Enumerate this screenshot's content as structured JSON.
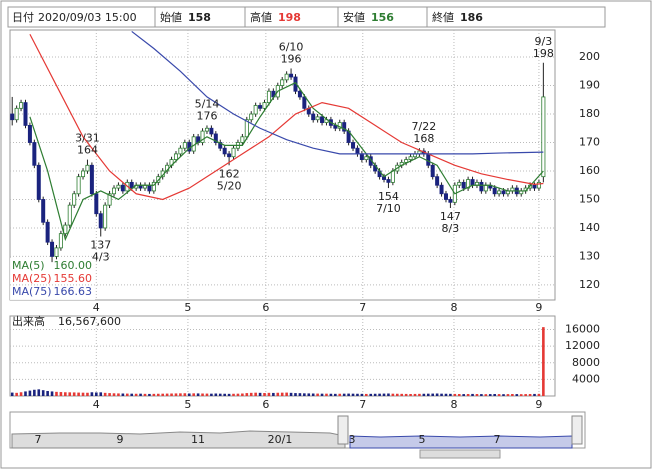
{
  "header": {
    "date_label": "日付",
    "date": "2020/09/03 15:00",
    "open_label": "始値",
    "open": 158,
    "high_label": "高値",
    "high": 198,
    "low_label": "安値",
    "low": 156,
    "close_label": "終値",
    "close": 186
  },
  "chart_data": {
    "type": "candlestick",
    "candles": [
      [
        180,
        186,
        176,
        178
      ],
      [
        178,
        183,
        177,
        182
      ],
      [
        182,
        185,
        181,
        184
      ],
      [
        184,
        185,
        175,
        176
      ],
      [
        176,
        177,
        169,
        170
      ],
      [
        170,
        171,
        161,
        162
      ],
      [
        162,
        163,
        149,
        150
      ],
      [
        150,
        151,
        141,
        142
      ],
      [
        142,
        143,
        134,
        135
      ],
      [
        135,
        136,
        128,
        130
      ],
      [
        130,
        134,
        129,
        133
      ],
      [
        133,
        139,
        132,
        138
      ],
      [
        138,
        142,
        137,
        141
      ],
      [
        141,
        149,
        140,
        148
      ],
      [
        148,
        153,
        147,
        152
      ],
      [
        152,
        159,
        151,
        158
      ],
      [
        158,
        161,
        157,
        160
      ],
      [
        160,
        164,
        159,
        162
      ],
      [
        162,
        163,
        151,
        152
      ],
      [
        152,
        153,
        144,
        145
      ],
      [
        145,
        146,
        137,
        140
      ],
      [
        140,
        149,
        139,
        148
      ],
      [
        148,
        153,
        147,
        152
      ],
      [
        152,
        155,
        151,
        154
      ],
      [
        154,
        156,
        153,
        155
      ],
      [
        155,
        156,
        152,
        153
      ],
      [
        153,
        157,
        152,
        156
      ],
      [
        156,
        157,
        153,
        154
      ],
      [
        154,
        156,
        153,
        155
      ],
      [
        155,
        156,
        153,
        154
      ],
      [
        154,
        156,
        153,
        155
      ],
      [
        155,
        156,
        152,
        153
      ],
      [
        153,
        157,
        152,
        156
      ],
      [
        156,
        159,
        155,
        158
      ],
      [
        158,
        161,
        157,
        160
      ],
      [
        160,
        163,
        159,
        162
      ],
      [
        162,
        165,
        161,
        164
      ],
      [
        164,
        167,
        163,
        166
      ],
      [
        166,
        169,
        165,
        168
      ],
      [
        168,
        171,
        167,
        170
      ],
      [
        170,
        171,
        166,
        167
      ],
      [
        167,
        173,
        166,
        172
      ],
      [
        172,
        173,
        169,
        170
      ],
      [
        170,
        175,
        169,
        174
      ],
      [
        174,
        176,
        173,
        175
      ],
      [
        175,
        176,
        172,
        173
      ],
      [
        173,
        174,
        169,
        170
      ],
      [
        170,
        171,
        167,
        168
      ],
      [
        168,
        169,
        165,
        166
      ],
      [
        166,
        167,
        162,
        165
      ],
      [
        165,
        169,
        164,
        168
      ],
      [
        168,
        171,
        167,
        170
      ],
      [
        170,
        173,
        169,
        172
      ],
      [
        172,
        179,
        171,
        178
      ],
      [
        178,
        181,
        177,
        180
      ],
      [
        180,
        184,
        179,
        183
      ],
      [
        183,
        184,
        181,
        182
      ],
      [
        182,
        185,
        181,
        184
      ],
      [
        184,
        189,
        183,
        188
      ],
      [
        188,
        189,
        185,
        186
      ],
      [
        186,
        191,
        185,
        190
      ],
      [
        190,
        193,
        189,
        192
      ],
      [
        192,
        195,
        191,
        194
      ],
      [
        194,
        196,
        192,
        193
      ],
      [
        193,
        194,
        187,
        188
      ],
      [
        188,
        189,
        185,
        186
      ],
      [
        186,
        187,
        181,
        182
      ],
      [
        182,
        183,
        179,
        180
      ],
      [
        180,
        181,
        177,
        178
      ],
      [
        178,
        180,
        177,
        179
      ],
      [
        179,
        180,
        176,
        177
      ],
      [
        177,
        179,
        176,
        178
      ],
      [
        178,
        179,
        175,
        176
      ],
      [
        176,
        177,
        174,
        175
      ],
      [
        175,
        178,
        174,
        177
      ],
      [
        177,
        178,
        173,
        174
      ],
      [
        174,
        175,
        169,
        170
      ],
      [
        170,
        171,
        167,
        168
      ],
      [
        168,
        169,
        165,
        166
      ],
      [
        166,
        167,
        163,
        164
      ],
      [
        164,
        166,
        163,
        165
      ],
      [
        165,
        166,
        161,
        162
      ],
      [
        162,
        163,
        159,
        160
      ],
      [
        160,
        161,
        157,
        158
      ],
      [
        158,
        159,
        156,
        157
      ],
      [
        157,
        158,
        154,
        156
      ],
      [
        156,
        161,
        155,
        160
      ],
      [
        160,
        163,
        159,
        162
      ],
      [
        162,
        164,
        161,
        163
      ],
      [
        163,
        165,
        162,
        164
      ],
      [
        164,
        166,
        163,
        165
      ],
      [
        165,
        167,
        164,
        166
      ],
      [
        166,
        168,
        165,
        167
      ],
      [
        167,
        168,
        165,
        166
      ],
      [
        166,
        167,
        161,
        162
      ],
      [
        162,
        163,
        157,
        158
      ],
      [
        158,
        159,
        154,
        155
      ],
      [
        155,
        156,
        151,
        152
      ],
      [
        152,
        153,
        149,
        150
      ],
      [
        150,
        151,
        147,
        149
      ],
      [
        149,
        156,
        148,
        155
      ],
      [
        155,
        157,
        154,
        156
      ],
      [
        156,
        157,
        153,
        154
      ],
      [
        154,
        158,
        153,
        157
      ],
      [
        157,
        158,
        154,
        155
      ],
      [
        155,
        157,
        154,
        156
      ],
      [
        156,
        157,
        152,
        153
      ],
      [
        153,
        156,
        152,
        155
      ],
      [
        155,
        156,
        153,
        154
      ],
      [
        154,
        155,
        151,
        152
      ],
      [
        152,
        154,
        151,
        153
      ],
      [
        153,
        154,
        151,
        152
      ],
      [
        152,
        154,
        151,
        153
      ],
      [
        153,
        155,
        152,
        154
      ],
      [
        154,
        155,
        151,
        152
      ],
      [
        152,
        154,
        151,
        153
      ],
      [
        153,
        155,
        152,
        154
      ],
      [
        154,
        156,
        153,
        155
      ],
      [
        155,
        156,
        153,
        154
      ],
      [
        154,
        157,
        153,
        156
      ],
      [
        158,
        198,
        156,
        186
      ]
    ],
    "xlim": [
      -0.5,
      121.5
    ],
    "xticks": [
      {
        "value": 19,
        "label": "4"
      },
      {
        "value": 39.7,
        "label": "5"
      },
      {
        "value": 57.3,
        "label": "6"
      },
      {
        "value": 79.2,
        "label": "7"
      },
      {
        "value": 99.8,
        "label": "8"
      },
      {
        "value": 119,
        "label": "9"
      }
    ],
    "ylim": [
      114.7,
      209.5
    ],
    "yticks": [
      120,
      130,
      140,
      150,
      160,
      170,
      180,
      190,
      200
    ],
    "grid": true,
    "up_color": "#ffffff",
    "down_color": "#1a237e",
    "series": [
      {
        "name": "MA(5)",
        "color": "#2e7d32",
        "legend_value": {
          "value": 160,
          "label": "160.00"
        },
        "x": [
          4,
          8,
          12,
          16,
          20,
          24,
          28,
          32,
          36,
          40,
          44,
          48,
          52,
          56,
          60,
          64,
          68,
          72,
          76,
          80,
          84,
          88,
          92,
          96,
          100,
          104,
          108,
          112,
          116,
          120
        ],
        "values": [
          179,
          160,
          136,
          150,
          153,
          150,
          155,
          155,
          162,
          168,
          172,
          169,
          169,
          179,
          188,
          191,
          182,
          177,
          174,
          166,
          158,
          162,
          165,
          162,
          152,
          155,
          155,
          153,
          153,
          160
        ]
      },
      {
        "name": "MA(25)",
        "color": "#e53935",
        "legend_value": {
          "value": 155.6,
          "label": "155.60"
        },
        "x": [
          4,
          10,
          16,
          22,
          28,
          34,
          40,
          46,
          52,
          58,
          64,
          70,
          76,
          82,
          88,
          94,
          100,
          106,
          112,
          118,
          120
        ],
        "values": [
          208,
          190,
          172,
          160,
          152,
          150,
          154,
          160,
          166,
          172,
          180,
          184,
          182,
          176,
          170,
          166,
          162,
          159,
          157,
          155.3,
          155.6
        ]
      },
      {
        "name": "MA(75)",
        "color": "#3949ab",
        "legend_value": {
          "value": 166.63,
          "label": "166.63"
        },
        "x": [
          27,
          32,
          38,
          44,
          50,
          56,
          62,
          68,
          74,
          80,
          86,
          92,
          98,
          104,
          110,
          116,
          120
        ],
        "values": [
          209,
          203,
          195,
          186,
          180,
          175,
          171,
          168,
          166,
          166,
          166,
          166,
          166,
          166,
          166.3,
          166.5,
          166.63
        ]
      }
    ],
    "annotations": [
      {
        "date": "3/31",
        "value": 164,
        "x": 17,
        "side": "above"
      },
      {
        "date": "4/3",
        "value": 137,
        "x": 20,
        "side": "below"
      },
      {
        "date": "5/14",
        "value": 176,
        "x": 44,
        "side": "above"
      },
      {
        "date": "5/20",
        "value": 162,
        "x": 49,
        "side": "below"
      },
      {
        "date": "6/10",
        "value": 196,
        "x": 63,
        "side": "above"
      },
      {
        "date": "7/10",
        "value": 154,
        "x": 85,
        "side": "below"
      },
      {
        "date": "7/22",
        "value": 168,
        "x": 93,
        "side": "above"
      },
      {
        "date": "8/3",
        "value": 147,
        "x": 99,
        "side": "below"
      },
      {
        "date": "9/3",
        "value": 198,
        "x": 120,
        "side": "above"
      }
    ],
    "volume": {
      "title": "出来高",
      "last": {
        "value": 16567.6,
        "label": "16,567,600"
      },
      "ylim": [
        0,
        19250
      ],
      "yticks": [
        4000,
        8000,
        12000,
        16000
      ],
      "up_color": "#e53935",
      "down_color": "#1a237e",
      "values": [
        820,
        760,
        900,
        1100,
        1300,
        1500,
        1600,
        1400,
        1200,
        1100,
        1000,
        950,
        900,
        880,
        860,
        820,
        800,
        780,
        900,
        850,
        880,
        760,
        700,
        650,
        620,
        600,
        580,
        560,
        540,
        560,
        520,
        500,
        520,
        540,
        560,
        580,
        600,
        620,
        640,
        660,
        600,
        640,
        620,
        600,
        580,
        560,
        600,
        560,
        540,
        520,
        540,
        560,
        600,
        700,
        760,
        800,
        760,
        720,
        760,
        740,
        780,
        800,
        820,
        760,
        700,
        680,
        640,
        620,
        600,
        580,
        560,
        560,
        540,
        520,
        540,
        560,
        580,
        560,
        540,
        520,
        500,
        520,
        540,
        560,
        580,
        600,
        560,
        540,
        520,
        500,
        480,
        500,
        520,
        540,
        560,
        580,
        600,
        560,
        540,
        520,
        500,
        480,
        460,
        480,
        500,
        480,
        460,
        440,
        460,
        480,
        460,
        440,
        460,
        480,
        460,
        440,
        460,
        480,
        500,
        520,
        16567.6
      ]
    }
  },
  "navigator": {
    "labels": [
      "7",
      "9",
      "11",
      "20/1",
      "3",
      "5",
      "7"
    ]
  }
}
